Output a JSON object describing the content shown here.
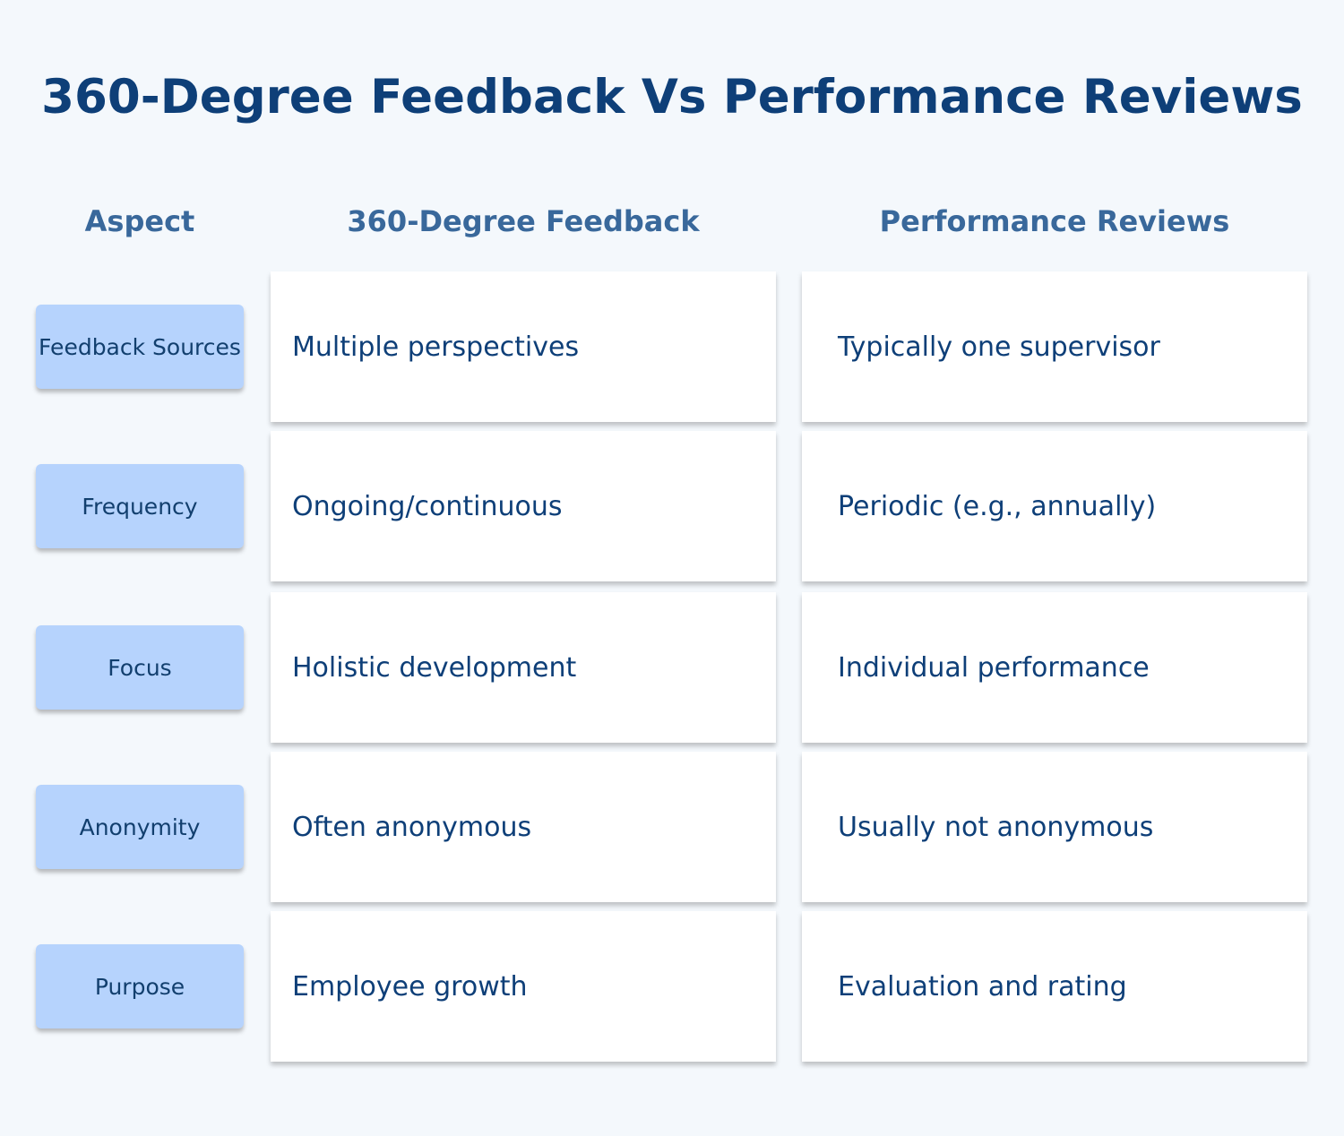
{
  "title": "360-Degree Feedback Vs Performance Reviews",
  "table": {
    "headers": [
      "Aspect",
      "360-Degree Feedback",
      "Performance Reviews"
    ],
    "rows": [
      [
        "Feedback Sources",
        "Multiple perspectives",
        "Typically one supervisor"
      ],
      [
        "Frequency",
        "Ongoing/continuous",
        "Periodic (e.g., annually)"
      ],
      [
        "Focus",
        "Holistic development",
        "Individual performance"
      ],
      [
        "Anonymity",
        "Often anonymous",
        "Usually not anonymous"
      ],
      [
        "Purpose",
        "Employee growth",
        "Evaluation and rating"
      ]
    ]
  }
}
